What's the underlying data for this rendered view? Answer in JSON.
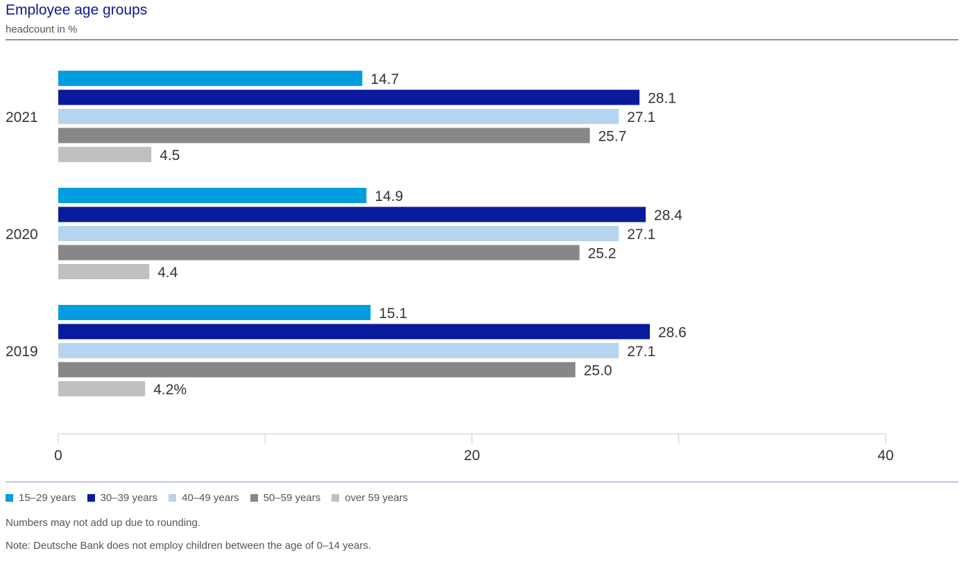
{
  "header": {
    "title": "Employee age groups",
    "subtitle": "headcount in %"
  },
  "chart_data": {
    "type": "bar",
    "orientation": "horizontal",
    "categories": [
      "2021",
      "2020",
      "2019"
    ],
    "series": [
      {
        "name": "15–29 years",
        "color": "#009ee0",
        "values": [
          14.7,
          14.9,
          15.1
        ],
        "labels": [
          "14.7",
          "14.9",
          "15.1"
        ]
      },
      {
        "name": "30–39 years",
        "color": "#0a1a9c",
        "values": [
          28.1,
          28.4,
          28.6
        ],
        "labels": [
          "28.1",
          "28.4",
          "28.6"
        ]
      },
      {
        "name": "40–49 years",
        "color": "#b3d5f0",
        "values": [
          27.1,
          27.1,
          27.1
        ],
        "labels": [
          "27.1",
          "27.1",
          "27.1"
        ]
      },
      {
        "name": "50–59 years",
        "color": "#878787",
        "values": [
          25.7,
          25.2,
          25.0
        ],
        "labels": [
          "25.7",
          "25.2",
          "25.0"
        ]
      },
      {
        "name": "over 59 years",
        "color": "#c0c0c0",
        "values": [
          4.5,
          4.4,
          4.2
        ],
        "labels": [
          "4.5",
          "4.4",
          "4.2%"
        ]
      }
    ],
    "x_ticks": [
      "0",
      "20",
      "40"
    ],
    "xlim": [
      0,
      40
    ],
    "grid": false,
    "legend_position": "bottom-left"
  },
  "notes": [
    "Numbers may not add up due to rounding.",
    "Note: Deutsche Bank does not employ children between the age of 0–14 years."
  ]
}
